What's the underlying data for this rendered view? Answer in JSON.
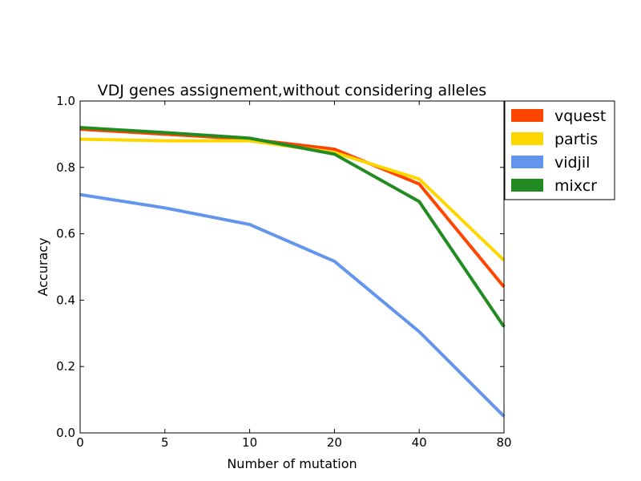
{
  "chart_data": {
    "type": "line",
    "title": "VDJ genes assignement,without considering alleles",
    "xlabel": "Number of mutation",
    "ylabel": "Accuracy",
    "categories": [
      "0",
      "5",
      "10",
      "20",
      "40",
      "80"
    ],
    "ylim": [
      0.0,
      1.0
    ],
    "yticks": [
      "0.0",
      "0.2",
      "0.4",
      "0.6",
      "0.8",
      "1.0"
    ],
    "grid": false,
    "legend": "outside-top-right",
    "series": [
      {
        "name": "vquest",
        "color": "#ff4500",
        "values": [
          0.915,
          0.9,
          0.885,
          0.855,
          0.75,
          0.44
        ]
      },
      {
        "name": "partis",
        "color": "#ffd700",
        "values": [
          0.885,
          0.88,
          0.88,
          0.845,
          0.765,
          0.52
        ]
      },
      {
        "name": "vidjil",
        "color": "#6495ed",
        "values": [
          0.718,
          0.678,
          0.628,
          0.517,
          0.305,
          0.05
        ]
      },
      {
        "name": "mixcr",
        "color": "#228b22",
        "values": [
          0.92,
          0.905,
          0.888,
          0.84,
          0.697,
          0.32
        ]
      }
    ]
  }
}
